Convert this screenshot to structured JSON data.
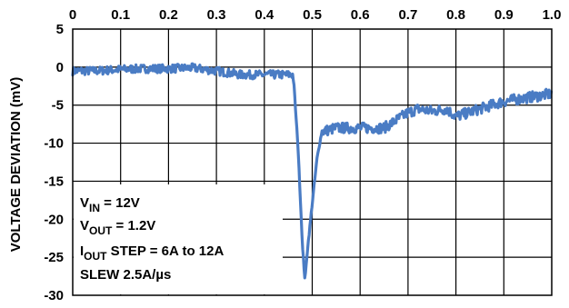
{
  "chart_data": {
    "type": "line",
    "xlabel": "",
    "ylabel": "VOLTAGE DEVIATION (mV)",
    "xlim": [
      0,
      1.0
    ],
    "ylim": [
      -30,
      5
    ],
    "x_tick_labels": [
      "0",
      "0.1",
      "0.2",
      "0.3",
      "0.4",
      "0.5",
      "0.6",
      "0.7",
      "0.8",
      "0.9",
      "1.0"
    ],
    "y_tick_labels": [
      "5",
      "0",
      "-5",
      "-10",
      "-15",
      "-20",
      "-25",
      "-30"
    ],
    "x_axis_position": "top",
    "grid": true,
    "line_color": "#4a7cc4",
    "series": [
      {
        "x": [
          0.0,
          0.05,
          0.1,
          0.15,
          0.2,
          0.25,
          0.3,
          0.35,
          0.4,
          0.45,
          0.46,
          0.47,
          0.48,
          0.485,
          0.49,
          0.5,
          0.51,
          0.52,
          0.55,
          0.6,
          0.65,
          0.7,
          0.72,
          0.75,
          0.78,
          0.8,
          0.85,
          0.9,
          0.95,
          1.0
        ],
        "y": [
          -0.5,
          -0.5,
          -0.3,
          -0.2,
          -0.2,
          -0.1,
          -0.5,
          -1.0,
          -1.0,
          -1.0,
          -1.0,
          -10.0,
          -24.0,
          -28.0,
          -24.0,
          -18.0,
          -12.0,
          -8.5,
          -8.0,
          -8.0,
          -8.0,
          -6.0,
          -5.5,
          -5.8,
          -5.5,
          -6.5,
          -5.5,
          -4.5,
          -4.0,
          -3.5
        ]
      }
    ],
    "annotations": [
      {
        "main": "V",
        "sub": "IN",
        "rest": " = 12V"
      },
      {
        "main": "V",
        "sub": "OUT",
        "rest": " = 1.2V"
      },
      {
        "main": "I",
        "sub": "OUT",
        "rest": " STEP = 6A to 12A"
      },
      {
        "main": "SLEW 2.5A/µs",
        "sub": "",
        "rest": ""
      }
    ]
  }
}
